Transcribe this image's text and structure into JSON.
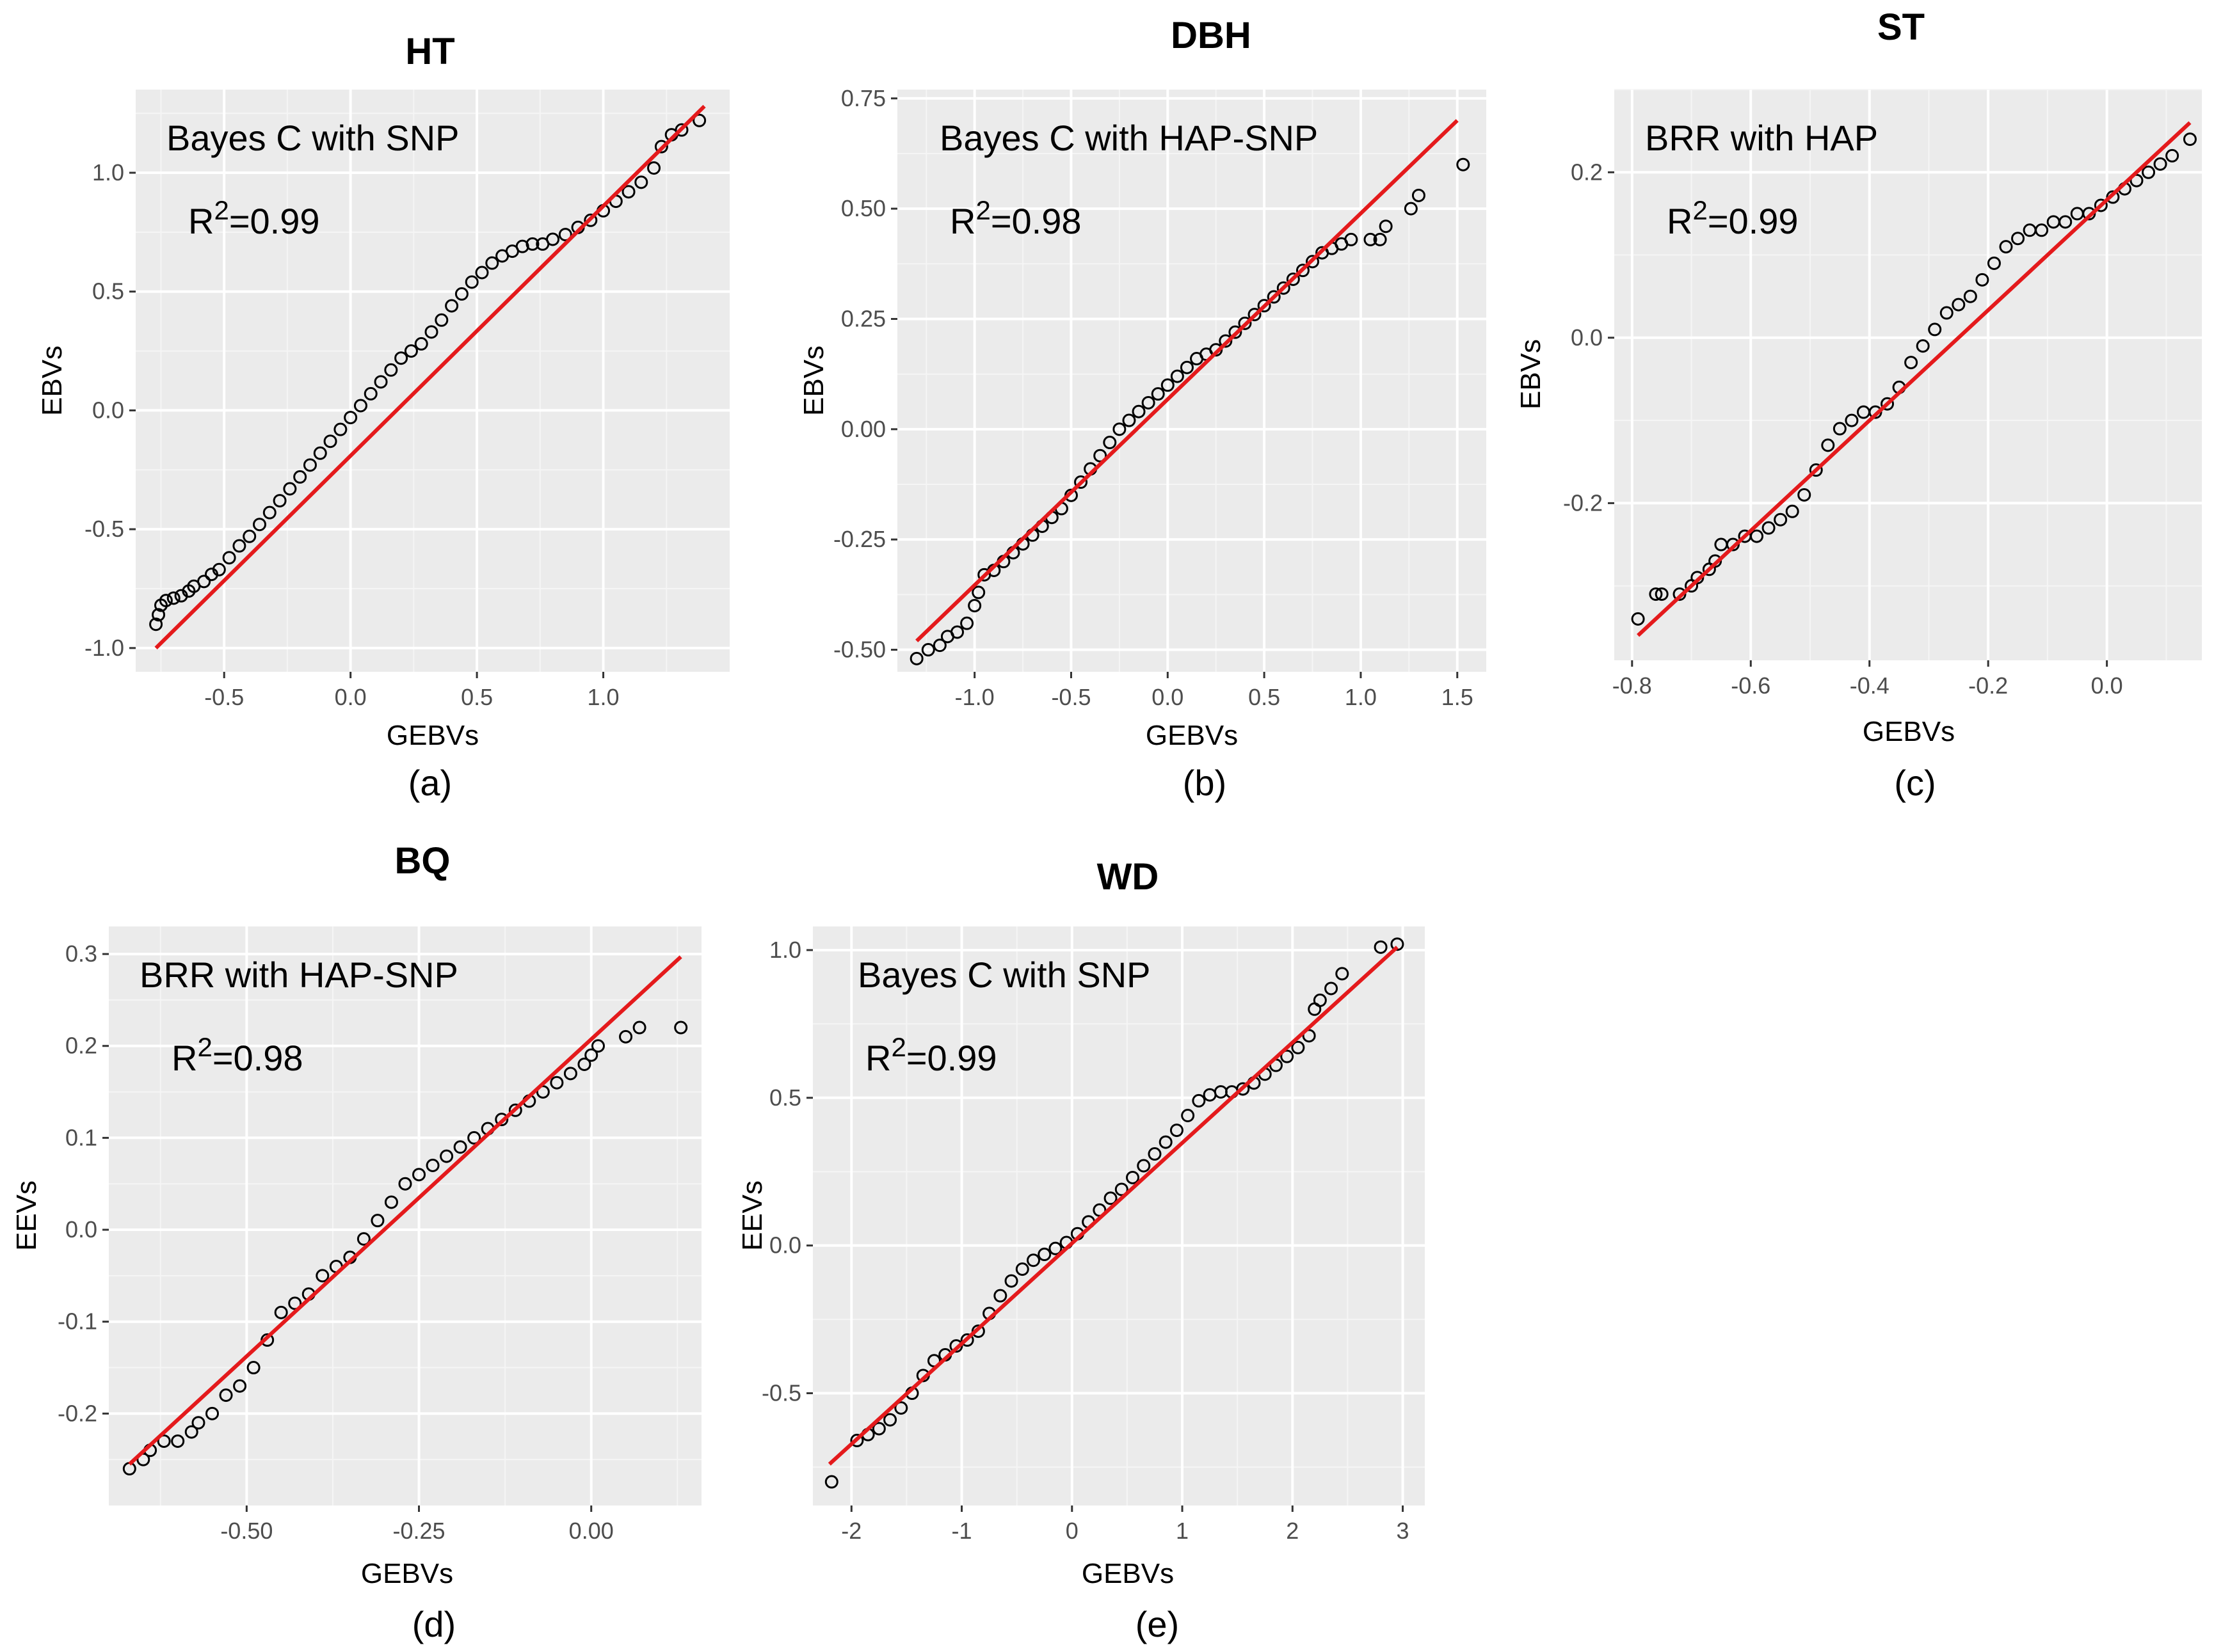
{
  "chart_data": [
    {
      "type": "scatter",
      "panel": "(a)",
      "title": "HT",
      "method": "Bayes C with SNP",
      "r2_prefix": "R",
      "r2_sup": "2",
      "r2_value": "=0.99",
      "xlabel": "GEBVs",
      "ylabel": "EBVs",
      "xlim": [
        -0.85,
        1.5
      ],
      "ylim": [
        -1.1,
        1.35
      ],
      "xticks": [
        -0.5,
        0.0,
        0.5,
        1.0
      ],
      "xticklabels": [
        "-0.5",
        "0.0",
        "0.5",
        "1.0"
      ],
      "yticks": [
        -1.0,
        -0.5,
        0.0,
        0.5,
        1.0
      ],
      "yticklabels": [
        "-1.0",
        "-0.5",
        "0.0",
        "0.5",
        "1.0"
      ],
      "fit_line": {
        "x": [
          -0.77,
          1.4
        ],
        "y": [
          -1.0,
          1.28
        ]
      },
      "points": {
        "x": [
          -0.77,
          -0.76,
          -0.75,
          -0.73,
          -0.7,
          -0.67,
          -0.64,
          -0.62,
          -0.58,
          -0.55,
          -0.52,
          -0.48,
          -0.44,
          -0.4,
          -0.36,
          -0.32,
          -0.28,
          -0.24,
          -0.2,
          -0.16,
          -0.12,
          -0.08,
          -0.04,
          0.0,
          0.04,
          0.08,
          0.12,
          0.16,
          0.2,
          0.24,
          0.28,
          0.32,
          0.36,
          0.4,
          0.44,
          0.48,
          0.52,
          0.56,
          0.6,
          0.64,
          0.68,
          0.72,
          0.76,
          0.8,
          0.85,
          0.9,
          0.95,
          1.0,
          1.05,
          1.1,
          1.15,
          1.2,
          1.23,
          1.27,
          1.31,
          1.38
        ],
        "y": [
          -0.9,
          -0.86,
          -0.82,
          -0.8,
          -0.79,
          -0.78,
          -0.76,
          -0.74,
          -0.72,
          -0.69,
          -0.67,
          -0.62,
          -0.57,
          -0.53,
          -0.48,
          -0.43,
          -0.38,
          -0.33,
          -0.28,
          -0.23,
          -0.18,
          -0.13,
          -0.08,
          -0.03,
          0.02,
          0.07,
          0.12,
          0.17,
          0.22,
          0.25,
          0.28,
          0.33,
          0.38,
          0.44,
          0.49,
          0.54,
          0.58,
          0.62,
          0.65,
          0.67,
          0.69,
          0.7,
          0.7,
          0.72,
          0.74,
          0.77,
          0.8,
          0.84,
          0.88,
          0.92,
          0.96,
          1.02,
          1.11,
          1.16,
          1.18,
          1.22
        ]
      }
    },
    {
      "type": "scatter",
      "panel": "(b)",
      "title": "DBH",
      "method": "Bayes C with  HAP-SNP",
      "r2_prefix": "R",
      "r2_sup": "2",
      "r2_value": "=0.98",
      "xlabel": "GEBVs",
      "ylabel": "EBVs",
      "xlim": [
        -1.4,
        1.65
      ],
      "ylim": [
        -0.55,
        0.77
      ],
      "xticks": [
        -1.0,
        -0.5,
        0.0,
        0.5,
        1.0,
        1.5
      ],
      "xticklabels": [
        "-1.0",
        "-0.5",
        "0.0",
        "0.5",
        "1.0",
        "1.5"
      ],
      "yticks": [
        -0.5,
        -0.25,
        0.0,
        0.25,
        0.5,
        0.75
      ],
      "yticklabels": [
        "-0.50",
        "-0.25",
        "0.00",
        "0.25",
        "0.50",
        "0.75"
      ],
      "fit_line": {
        "x": [
          -1.3,
          1.5
        ],
        "y": [
          -0.48,
          0.7
        ]
      },
      "points": {
        "x": [
          -1.3,
          -1.24,
          -1.18,
          -1.14,
          -1.09,
          -1.04,
          -1.0,
          -0.98,
          -0.95,
          -0.9,
          -0.85,
          -0.8,
          -0.75,
          -0.7,
          -0.65,
          -0.6,
          -0.55,
          -0.5,
          -0.45,
          -0.4,
          -0.35,
          -0.3,
          -0.25,
          -0.2,
          -0.15,
          -0.1,
          -0.05,
          0.0,
          0.05,
          0.1,
          0.15,
          0.2,
          0.25,
          0.3,
          0.35,
          0.4,
          0.45,
          0.5,
          0.55,
          0.6,
          0.65,
          0.7,
          0.75,
          0.8,
          0.85,
          0.9,
          0.95,
          1.05,
          1.1,
          1.13,
          1.26,
          1.3,
          1.53
        ],
        "y": [
          -0.52,
          -0.5,
          -0.49,
          -0.47,
          -0.46,
          -0.44,
          -0.4,
          -0.37,
          -0.33,
          -0.32,
          -0.3,
          -0.28,
          -0.26,
          -0.24,
          -0.22,
          -0.2,
          -0.18,
          -0.15,
          -0.12,
          -0.09,
          -0.06,
          -0.03,
          0.0,
          0.02,
          0.04,
          0.06,
          0.08,
          0.1,
          0.12,
          0.14,
          0.16,
          0.17,
          0.18,
          0.2,
          0.22,
          0.24,
          0.26,
          0.28,
          0.3,
          0.32,
          0.34,
          0.36,
          0.38,
          0.4,
          0.41,
          0.42,
          0.43,
          0.43,
          0.43,
          0.46,
          0.5,
          0.53,
          0.6
        ]
      }
    },
    {
      "type": "scatter",
      "panel": "(c)",
      "title": "ST",
      "method": "BRR with HAP",
      "r2_prefix": "R",
      "r2_sup": "2",
      "r2_value": "=0.99",
      "xlabel": "GEBVs",
      "ylabel": "EBVs",
      "xlim": [
        -0.83,
        0.16
      ],
      "ylim": [
        -0.39,
        0.3
      ],
      "xticks": [
        -0.8,
        -0.6,
        -0.4,
        -0.2,
        0.0
      ],
      "xticklabels": [
        "-0.8",
        "-0.6",
        "-0.4",
        "-0.2",
        "0.0"
      ],
      "yticks": [
        -0.2,
        0.0,
        0.2
      ],
      "yticklabels": [
        "-0.2",
        "0.0",
        "0.2"
      ],
      "fit_line": {
        "x": [
          -0.79,
          0.14
        ],
        "y": [
          -0.36,
          0.26
        ]
      },
      "points": {
        "x": [
          -0.79,
          -0.76,
          -0.75,
          -0.72,
          -0.7,
          -0.69,
          -0.67,
          -0.66,
          -0.65,
          -0.63,
          -0.61,
          -0.59,
          -0.57,
          -0.55,
          -0.53,
          -0.51,
          -0.49,
          -0.47,
          -0.45,
          -0.43,
          -0.41,
          -0.39,
          -0.37,
          -0.35,
          -0.33,
          -0.31,
          -0.29,
          -0.27,
          -0.25,
          -0.23,
          -0.21,
          -0.19,
          -0.17,
          -0.15,
          -0.13,
          -0.11,
          -0.09,
          -0.07,
          -0.05,
          -0.03,
          -0.01,
          0.01,
          0.03,
          0.05,
          0.07,
          0.09,
          0.11,
          0.14
        ],
        "y": [
          -0.34,
          -0.31,
          -0.31,
          -0.31,
          -0.3,
          -0.29,
          -0.28,
          -0.27,
          -0.25,
          -0.25,
          -0.24,
          -0.24,
          -0.23,
          -0.22,
          -0.21,
          -0.19,
          -0.16,
          -0.13,
          -0.11,
          -0.1,
          -0.09,
          -0.09,
          -0.08,
          -0.06,
          -0.03,
          -0.01,
          0.01,
          0.03,
          0.04,
          0.05,
          0.07,
          0.09,
          0.11,
          0.12,
          0.13,
          0.13,
          0.14,
          0.14,
          0.15,
          0.15,
          0.16,
          0.17,
          0.18,
          0.19,
          0.2,
          0.21,
          0.22,
          0.24
        ]
      }
    },
    {
      "type": "scatter",
      "panel": "(d)",
      "title": "BQ",
      "method": "BRR with HAP-SNP",
      "r2_prefix": "R",
      "r2_sup": "2",
      "r2_value": "=0.98",
      "xlabel": "GEBVs",
      "ylabel": "EEVs",
      "xlim": [
        -0.7,
        0.16
      ],
      "ylim": [
        -0.3,
        0.33
      ],
      "xticks": [
        -0.5,
        -0.25,
        0.0
      ],
      "xticklabels": [
        "-0.50",
        "-0.25",
        "0.00"
      ],
      "yticks": [
        -0.2,
        -0.1,
        0.0,
        0.1,
        0.2,
        0.3
      ],
      "yticklabels": [
        "-0.2",
        "-0.1",
        "0.0",
        "0.1",
        "0.2",
        "0.3"
      ],
      "fit_line": {
        "x": [
          -0.67,
          0.13
        ],
        "y": [
          -0.255,
          0.297
        ]
      },
      "points": {
        "x": [
          -0.67,
          -0.65,
          -0.64,
          -0.62,
          -0.6,
          -0.58,
          -0.57,
          -0.55,
          -0.53,
          -0.51,
          -0.49,
          -0.47,
          -0.45,
          -0.43,
          -0.41,
          -0.39,
          -0.37,
          -0.35,
          -0.33,
          -0.31,
          -0.29,
          -0.27,
          -0.25,
          -0.23,
          -0.21,
          -0.19,
          -0.17,
          -0.15,
          -0.13,
          -0.11,
          -0.09,
          -0.07,
          -0.05,
          -0.03,
          -0.01,
          0.0,
          0.01,
          0.05,
          0.07,
          0.13
        ],
        "y": [
          -0.26,
          -0.25,
          -0.24,
          -0.23,
          -0.23,
          -0.22,
          -0.21,
          -0.2,
          -0.18,
          -0.17,
          -0.15,
          -0.12,
          -0.09,
          -0.08,
          -0.07,
          -0.05,
          -0.04,
          -0.03,
          -0.01,
          0.01,
          0.03,
          0.05,
          0.06,
          0.07,
          0.08,
          0.09,
          0.1,
          0.11,
          0.12,
          0.13,
          0.14,
          0.15,
          0.16,
          0.17,
          0.18,
          0.19,
          0.2,
          0.21,
          0.22,
          0.22
        ]
      }
    },
    {
      "type": "scatter",
      "panel": "(e)",
      "title": "WD",
      "method": "Bayes C with SNP",
      "r2_prefix": "R",
      "r2_sup": "2",
      "r2_value": "=0.99",
      "xlabel": "GEBVs",
      "ylabel": "EEVs",
      "xlim": [
        -2.35,
        3.2
      ],
      "ylim": [
        -0.88,
        1.08
      ],
      "xticks": [
        -2,
        -1,
        0,
        1,
        2,
        3
      ],
      "xticklabels": [
        "-2",
        "-1",
        "0",
        "1",
        "2",
        "3"
      ],
      "yticks": [
        -0.5,
        0.0,
        0.5,
        1.0
      ],
      "yticklabels": [
        "-0.5",
        "0.0",
        "0.5",
        "1.0"
      ],
      "fit_line": {
        "x": [
          -2.2,
          2.95
        ],
        "y": [
          -0.74,
          1.01
        ]
      },
      "points": {
        "x": [
          -2.18,
          -1.95,
          -1.85,
          -1.75,
          -1.65,
          -1.55,
          -1.45,
          -1.35,
          -1.25,
          -1.15,
          -1.05,
          -0.95,
          -0.85,
          -0.75,
          -0.65,
          -0.55,
          -0.45,
          -0.35,
          -0.25,
          -0.15,
          -0.05,
          0.05,
          0.15,
          0.25,
          0.35,
          0.45,
          0.55,
          0.65,
          0.75,
          0.85,
          0.95,
          1.05,
          1.15,
          1.25,
          1.35,
          1.45,
          1.55,
          1.65,
          1.75,
          1.85,
          1.95,
          2.05,
          2.15,
          2.2,
          2.25,
          2.35,
          2.45,
          2.8,
          2.95
        ],
        "y": [
          -0.8,
          -0.66,
          -0.64,
          -0.62,
          -0.59,
          -0.55,
          -0.5,
          -0.44,
          -0.39,
          -0.37,
          -0.34,
          -0.32,
          -0.29,
          -0.23,
          -0.17,
          -0.12,
          -0.08,
          -0.05,
          -0.03,
          -0.01,
          0.01,
          0.04,
          0.08,
          0.12,
          0.16,
          0.19,
          0.23,
          0.27,
          0.31,
          0.35,
          0.39,
          0.44,
          0.49,
          0.51,
          0.52,
          0.52,
          0.53,
          0.55,
          0.58,
          0.61,
          0.64,
          0.67,
          0.71,
          0.8,
          0.83,
          0.87,
          0.92,
          1.01,
          1.02
        ]
      }
    }
  ]
}
